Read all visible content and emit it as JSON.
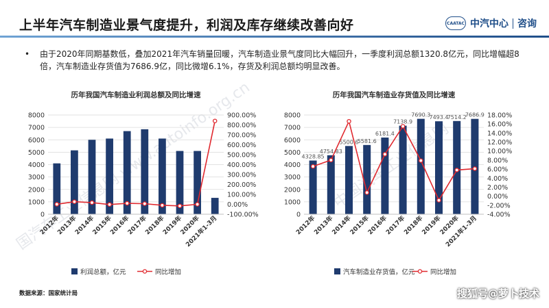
{
  "header": {
    "title": "上半年汽车制造业景气度提升，利润及库存继续改善向好",
    "brand_logo": "CAATAC",
    "brand_name": "中汽中心",
    "brand_section": "咨询"
  },
  "bullet": {
    "text": "由于2020年同期基数低，叠加2021年汽车销量回暖，汽车制造业景气度同比大幅回升，一季度利润总额1320.8亿元，同比增幅超8倍，汽车制造业存货值为7686.9亿，同比微增6.1%，存货及利润总额均明显改善。"
  },
  "footer": {
    "source": "数据来源：国家统计局",
    "watermark": "搜狐号@萝卜技术"
  },
  "colors": {
    "bar": "#1f3b6e",
    "line": "#e0282e",
    "accent": "#1f4e89"
  },
  "chart_data": [
    {
      "type": "bar",
      "title": "历年我国汽车制造业利润总额及同比增速",
      "categories": [
        "2012年",
        "2013年",
        "2014年",
        "2015年",
        "2016年",
        "2017年",
        "2018年",
        "2019年",
        "2020年",
        "2021年1-3月"
      ],
      "series": [
        {
          "name": "利润总额，亿元",
          "type": "bar",
          "axis": "left",
          "values": [
            4100,
            5150,
            6000,
            6100,
            6700,
            6850,
            6100,
            5100,
            5100,
            1320.8
          ]
        },
        {
          "name": "同比增加",
          "type": "line",
          "axis": "right",
          "values": [
            0.5,
            26.0,
            17.0,
            -2.0,
            10.0,
            6.0,
            -10.0,
            -16.0,
            0.0,
            840.0
          ]
        }
      ],
      "y_left": {
        "min": 0,
        "max": 8000,
        "step": 1000,
        "ticks": [
          "0",
          "1000",
          "2000",
          "3000",
          "4000",
          "5000",
          "6000",
          "7000",
          "8000"
        ]
      },
      "y_right": {
        "min": -100,
        "max": 900,
        "step": 100,
        "ticks": [
          "-100.00%",
          "0.00%",
          "100.00%",
          "200.00%",
          "300.00%",
          "400.00%",
          "500.00%",
          "600.00%",
          "700.00%",
          "800.00%",
          "900.00%"
        ]
      },
      "grid": true,
      "legend": "bottom",
      "watermark": "国汽车工业信息网 www.autoinfo.org.cn"
    },
    {
      "type": "bar",
      "title": "历年我国汽车制造业存货值及同比增速",
      "categories": [
        "2012年",
        "2013年",
        "2014年",
        "2015年",
        "2016年",
        "2017年",
        "2018年",
        "2019年",
        "2020年",
        "2021年1-3月"
      ],
      "series": [
        {
          "name": "汽车制造业存货值，亿元",
          "type": "bar",
          "axis": "left",
          "values": [
            4328.85,
            4754.83,
            5500.6,
            5581.6,
            6181.4,
            7138.9,
            7690.3,
            7493.4,
            7514.2,
            7686.9
          ]
        },
        {
          "name": "同比增加",
          "type": "line",
          "axis": "right",
          "values": [
            6.6,
            8.0,
            16.6,
            0.8,
            9.3,
            15.5,
            7.9,
            -0.9,
            5.8,
            6.1
          ]
        }
      ],
      "bar_labels": [
        "4328.85",
        "4754.83",
        "5500.6",
        "5581.6",
        "6181.4",
        "7138.9",
        "7690.3",
        "7493.4",
        "7514.2",
        "7686.9"
      ],
      "y_left": {
        "min": 0,
        "max": 8000,
        "step": 1000,
        "ticks": [
          "0",
          "1000",
          "2000",
          "3000",
          "4000",
          "5000",
          "6000",
          "7000",
          "8000"
        ]
      },
      "y_right": {
        "min": -4,
        "max": 18,
        "step": 2,
        "ticks": [
          "-4.00%",
          "-2.00%",
          "0.00%",
          "2.00%",
          "4.00%",
          "6.00%",
          "8.00%",
          "10.00%",
          "12.00%",
          "14.00%",
          "16.00%",
          "18.00%"
        ]
      },
      "grid": true,
      "legend": "bottom",
      "watermark": "中国汽车工业信息网"
    }
  ]
}
